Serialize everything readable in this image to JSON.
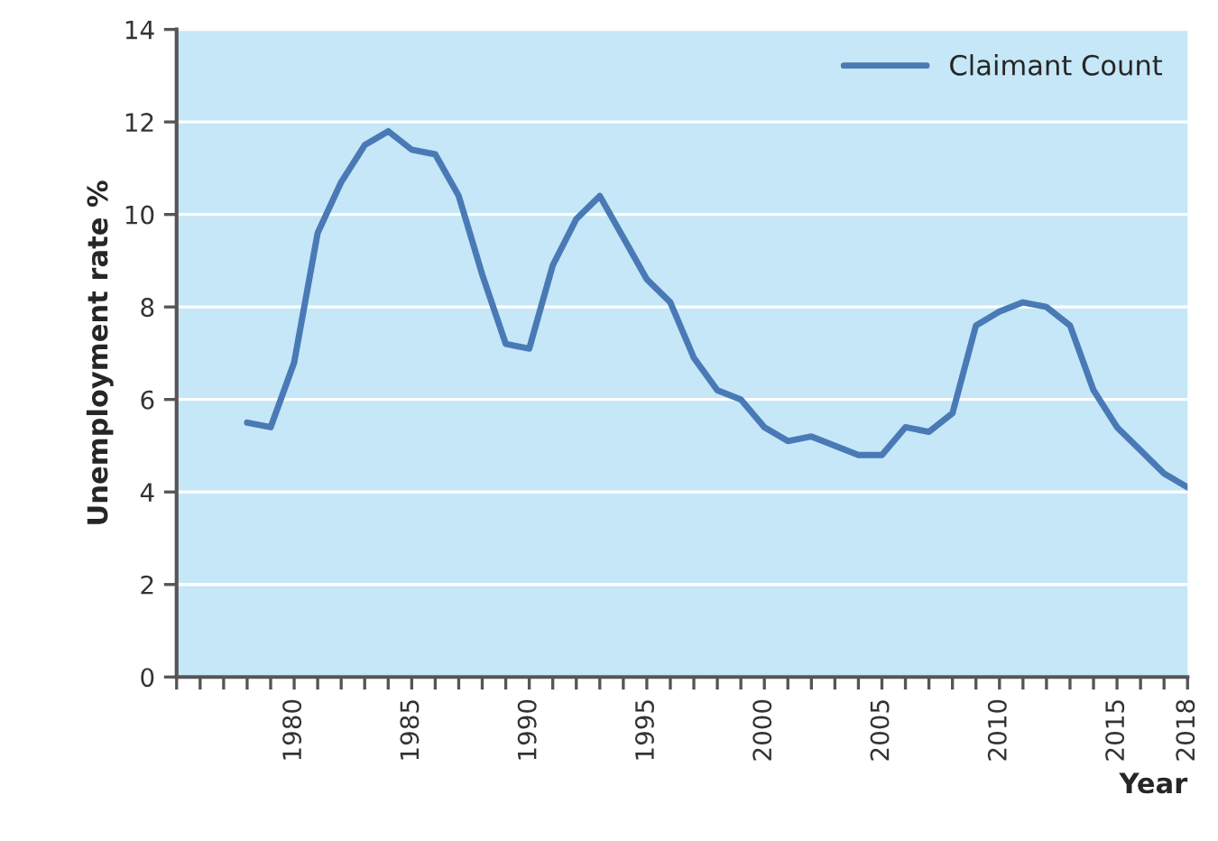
{
  "chart_data": {
    "type": "line",
    "xlabel": "Year",
    "ylabel": "Unemployment rate %",
    "x": [
      1978,
      1979,
      1980,
      1981,
      1982,
      1983,
      1984,
      1985,
      1986,
      1987,
      1988,
      1989,
      1990,
      1991,
      1992,
      1993,
      1994,
      1995,
      1996,
      1997,
      1998,
      1999,
      2000,
      2001,
      2002,
      2003,
      2004,
      2005,
      2006,
      2007,
      2008,
      2009,
      2010,
      2011,
      2012,
      2013,
      2014,
      2015,
      2016,
      2017,
      2018
    ],
    "series": [
      {
        "name": "Claimant Count",
        "color": "#4a7ab5",
        "values": [
          5.5,
          5.4,
          6.8,
          9.6,
          10.7,
          11.5,
          11.8,
          11.4,
          11.3,
          10.4,
          8.7,
          7.2,
          7.1,
          8.9,
          9.9,
          10.4,
          9.5,
          8.6,
          8.1,
          6.9,
          6.2,
          6.0,
          5.4,
          5.1,
          5.2,
          5.0,
          4.8,
          4.8,
          5.4,
          5.3,
          5.7,
          7.6,
          7.9,
          8.1,
          8.0,
          7.6,
          6.2,
          5.4,
          4.9,
          4.4,
          4.1
        ]
      }
    ],
    "xlim": [
      1975,
      2018
    ],
    "ylim": [
      0,
      14
    ],
    "xticks": [
      {
        "value": 1975,
        "label": null
      },
      {
        "value": 1976,
        "label": null
      },
      {
        "value": 1977,
        "label": null
      },
      {
        "value": 1978,
        "label": null
      },
      {
        "value": 1979,
        "label": null
      },
      1980,
      {
        "value": 1981,
        "label": null
      },
      {
        "value": 1982,
        "label": null
      },
      {
        "value": 1983,
        "label": null
      },
      {
        "value": 1984,
        "label": null
      },
      1985,
      {
        "value": 1986,
        "label": null
      },
      {
        "value": 1987,
        "label": null
      },
      {
        "value": 1988,
        "label": null
      },
      {
        "value": 1989,
        "label": null
      },
      1990,
      {
        "value": 1991,
        "label": null
      },
      {
        "value": 1992,
        "label": null
      },
      {
        "value": 1993,
        "label": null
      },
      {
        "value": 1994,
        "label": null
      },
      1995,
      {
        "value": 1996,
        "label": null
      },
      {
        "value": 1997,
        "label": null
      },
      {
        "value": 1998,
        "label": null
      },
      {
        "value": 1999,
        "label": null
      },
      2000,
      {
        "value": 2001,
        "label": null
      },
      {
        "value": 2002,
        "label": null
      },
      {
        "value": 2003,
        "label": null
      },
      {
        "value": 2004,
        "label": null
      },
      2005,
      {
        "value": 2006,
        "label": null
      },
      {
        "value": 2007,
        "label": null
      },
      {
        "value": 2008,
        "label": null
      },
      {
        "value": 2009,
        "label": null
      },
      2010,
      {
        "value": 2011,
        "label": null
      },
      {
        "value": 2012,
        "label": null
      },
      {
        "value": 2013,
        "label": null
      },
      {
        "value": 2014,
        "label": null
      },
      2015,
      {
        "value": 2016,
        "label": null
      },
      {
        "value": 2017,
        "label": null
      },
      2018
    ],
    "yticks": [
      0,
      2,
      4,
      6,
      8,
      10,
      12,
      14
    ],
    "grid": "y",
    "legend": "top right",
    "line_style": "solid"
  }
}
